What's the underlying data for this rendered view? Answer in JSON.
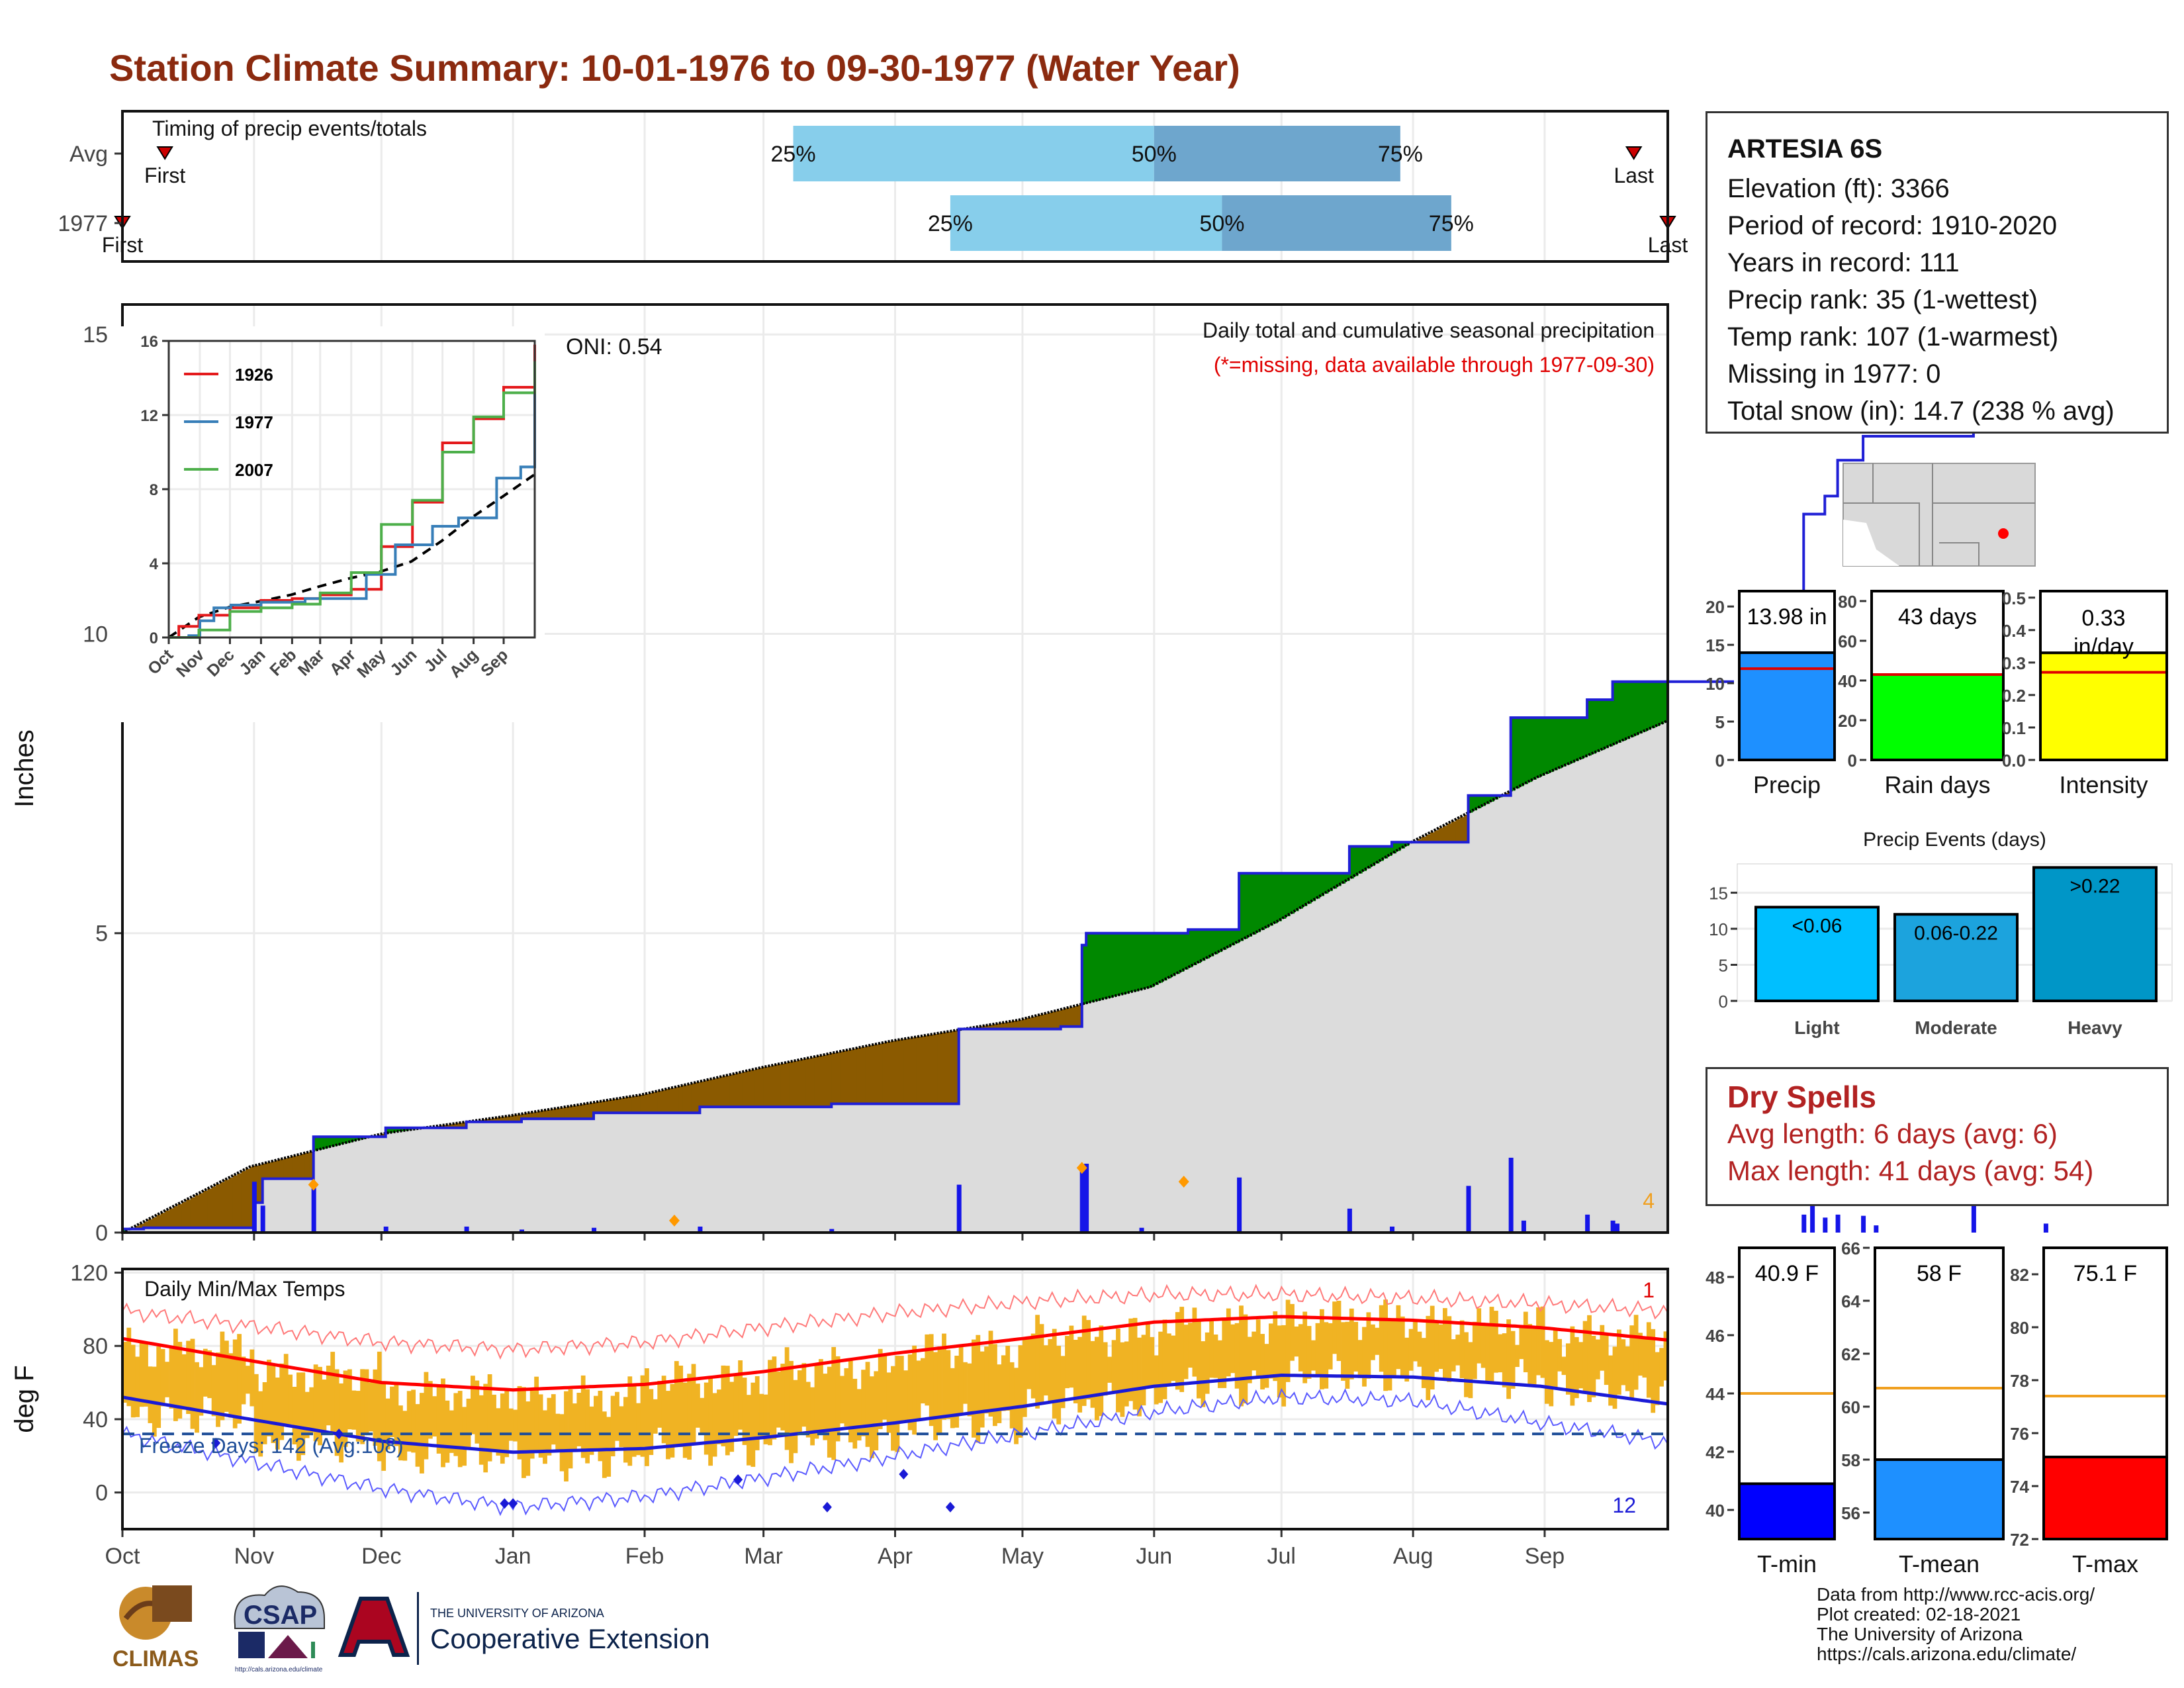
{
  "title": "Station Climate Summary: 10-01-1976 to 09-30-1977 (Water Year)",
  "station": {
    "name": "ARTESIA 6S",
    "lines": [
      "Elevation (ft): 3366",
      "Period of record: 1910-2020",
      "Years in record: 111",
      "Precip rank: 35 (1-wettest)",
      "Temp rank: 107 (1-warmest)",
      "Missing in 1977: 0",
      "Total snow (in): 14.7 (238 % avg)"
    ]
  },
  "dry_spells": {
    "title": "Dry Spells",
    "avg": "Avg length: 6 days (avg: 6)",
    "max": "Max length: 41 days (avg: 54)"
  },
  "credits": [
    "Data from http://www.rcc-acis.org/",
    "Plot created: 02-18-2021",
    "The University of Arizona",
    "https://cals.arizona.edu/climate/"
  ],
  "logos": {
    "climas": "CLIMAS",
    "csap": "CSAP",
    "csap_url": "http://cals.arizona.edu/climate",
    "ua_small": "THE UNIVERSITY OF ARIZONA",
    "ua_big": "Cooperative Extension"
  },
  "colors": {
    "title": "#8b2a0f",
    "precip_green": "#008800",
    "precip_brown": "#8b5a00",
    "precip_line": "#1f1fd6",
    "cum_gray": "#dcdcdc",
    "bar_orange": "#f0b323",
    "tmax_red": "#ff0000",
    "tmin_blue": "#1a1ad6",
    "freeze_line": "#1f4e99",
    "light_blue": "#87ceeb",
    "mid_blue": "#6ea6cd",
    "dry_red": "#b22222"
  },
  "chart_data": [
    {
      "id": "timing",
      "type": "bar",
      "title": "Timing of precip events/totals",
      "rows": [
        {
          "label": "Avg",
          "q25": "Mar 8",
          "q50": "Jun 1",
          "q75": "Jul 29",
          "first": "Oct 11",
          "last": "Sep 22"
        },
        {
          "label": "1977",
          "q25": "Apr 14",
          "q50": "Jun 17",
          "q75": "Aug 10",
          "first": "Oct 1",
          "last": "Sep 30"
        }
      ],
      "first_label": "First",
      "last_label": "Last",
      "pct_labels": [
        "25%",
        "50%",
        "75%"
      ]
    },
    {
      "id": "precip",
      "type": "area",
      "title": "Daily total and cumulative seasonal precipitation",
      "subtitle": "(*=missing, data available through 1977-09-30)",
      "annotation": "ONI: 0.54",
      "ylabel": "Inches",
      "ylim": [
        0,
        15.5
      ],
      "yticks": [
        0,
        5,
        10,
        15
      ],
      "corner_label": "4",
      "x_month_labels": [
        "Oct",
        "Nov",
        "Dec",
        "Jan",
        "Feb",
        "Mar",
        "Apr",
        "May",
        "Jun",
        "Jul",
        "Aug",
        "Sep"
      ],
      "x_unit": "day of water year (0 = Oct 1)",
      "cum_1977_steps": [
        [
          0,
          0.06
        ],
        [
          5,
          0.08
        ],
        [
          30,
          0.08
        ],
        [
          31,
          0.5
        ],
        [
          33,
          0.9
        ],
        [
          44,
          0.9
        ],
        [
          45,
          1.6
        ],
        [
          60,
          1.6
        ],
        [
          62,
          1.75
        ],
        [
          80,
          1.75
        ],
        [
          81,
          1.85
        ],
        [
          93,
          1.85
        ],
        [
          94,
          1.9
        ],
        [
          110,
          1.9
        ],
        [
          111,
          2.0
        ],
        [
          135,
          2.0
        ],
        [
          136,
          2.1
        ],
        [
          166,
          2.1
        ],
        [
          167,
          2.15
        ],
        [
          196,
          2.15
        ],
        [
          197,
          3.4
        ],
        [
          220,
          3.4
        ],
        [
          221,
          3.44
        ],
        [
          225,
          3.44
        ],
        [
          226,
          4.8
        ],
        [
          227,
          5.0
        ],
        [
          250,
          5.0
        ],
        [
          251,
          5.06
        ],
        [
          262,
          5.06
        ],
        [
          263,
          6.0
        ],
        [
          288,
          6.0
        ],
        [
          289,
          6.45
        ],
        [
          298,
          6.45
        ],
        [
          299,
          6.52
        ],
        [
          316,
          6.52
        ],
        [
          317,
          7.3
        ],
        [
          326,
          7.3
        ],
        [
          327,
          8.6
        ],
        [
          344,
          8.6
        ],
        [
          345,
          8.9
        ],
        [
          350,
          8.9
        ],
        [
          351,
          9.2
        ],
        [
          395,
          9.2
        ],
        [
          396,
          12.0
        ],
        [
          401,
          12.3
        ],
        [
          403,
          12.3
        ],
        [
          404,
          12.9
        ],
        [
          409,
          12.9
        ],
        [
          410,
          13.3
        ],
        [
          435,
          13.3
        ],
        [
          436,
          13.8
        ],
        [
          452,
          13.8
        ],
        [
          453,
          13.98
        ],
        [
          464,
          13.98
        ]
      ],
      "cum_avg": [
        [
          0,
          0.0
        ],
        [
          30,
          1.1
        ],
        [
          61,
          1.65
        ],
        [
          91,
          1.95
        ],
        [
          122,
          2.3
        ],
        [
          150,
          2.75
        ],
        [
          181,
          3.2
        ],
        [
          211,
          3.55
        ],
        [
          242,
          4.1
        ],
        [
          272,
          5.2
        ],
        [
          303,
          6.5
        ],
        [
          333,
          7.6
        ],
        [
          364,
          8.55
        ],
        [
          395,
          9.5
        ],
        [
          426,
          10.5
        ],
        [
          457,
          11.6
        ],
        [
          464,
          11.9
        ]
      ],
      "daily_1977": [
        [
          31,
          0.85
        ],
        [
          33,
          0.45
        ],
        [
          45,
          0.78
        ],
        [
          62,
          0.1
        ],
        [
          81,
          0.1
        ],
        [
          94,
          0.05
        ],
        [
          111,
          0.08
        ],
        [
          136,
          0.1
        ],
        [
          167,
          0.06
        ],
        [
          197,
          0.8
        ],
        [
          226,
          1.05
        ],
        [
          227,
          1.15
        ],
        [
          240,
          0.08
        ],
        [
          263,
          0.92
        ],
        [
          289,
          0.4
        ],
        [
          299,
          0.1
        ],
        [
          317,
          0.78
        ],
        [
          327,
          1.25
        ],
        [
          330,
          0.2
        ],
        [
          345,
          0.3
        ],
        [
          351,
          0.2
        ],
        [
          352,
          0.15
        ],
        [
          396,
          0.3
        ],
        [
          398,
          2.35
        ],
        [
          401,
          0.25
        ],
        [
          404,
          0.3
        ],
        [
          410,
          0.28
        ],
        [
          413,
          0.12
        ],
        [
          436,
          0.5
        ],
        [
          453,
          0.15
        ]
      ],
      "orange_markers": [
        [
          45,
          0.8
        ],
        [
          130,
          0.2
        ],
        [
          226,
          1.08
        ],
        [
          250,
          0.85
        ]
      ]
    },
    {
      "id": "inset",
      "type": "line",
      "ylim": [
        0,
        16
      ],
      "yticks": [
        0,
        4,
        8,
        12,
        16
      ],
      "x_labels": [
        "Oct",
        "Nov",
        "Dec",
        "Jan",
        "Feb",
        "Mar",
        "Apr",
        "May",
        "Jun",
        "Jul",
        "Aug",
        "Sep"
      ],
      "series": [
        {
          "name": "1926",
          "color": "#e41a1c",
          "values": [
            [
              0,
              0.0
            ],
            [
              10,
              0.6
            ],
            [
              30,
              1.2
            ],
            [
              61,
              1.6
            ],
            [
              92,
              2.0
            ],
            [
              123,
              2.1
            ],
            [
              151,
              2.3
            ],
            [
              182,
              2.6
            ],
            [
              212,
              4.9
            ],
            [
              243,
              7.3
            ],
            [
              273,
              10.5
            ],
            [
              304,
              11.8
            ],
            [
              334,
              13.5
            ],
            [
              365,
              15.8
            ]
          ]
        },
        {
          "name": "1977",
          "color": "#377eb8",
          "values": [
            [
              0,
              0.0
            ],
            [
              20,
              0.1
            ],
            [
              31,
              0.9
            ],
            [
              45,
              1.6
            ],
            [
              62,
              1.75
            ],
            [
              92,
              1.9
            ],
            [
              136,
              2.1
            ],
            [
              197,
              3.4
            ],
            [
              226,
              5.0
            ],
            [
              263,
              6.0
            ],
            [
              289,
              6.45
            ],
            [
              327,
              8.6
            ],
            [
              351,
              9.2
            ],
            [
              396,
              12.0
            ],
            [
              410,
              13.3
            ],
            [
              436,
              13.8
            ],
            [
              464,
              13.98
            ]
          ]
        },
        {
          "name": "2007",
          "color": "#4daf4a",
          "values": [
            [
              0,
              0.0
            ],
            [
              30,
              0.4
            ],
            [
              61,
              1.4
            ],
            [
              92,
              1.6
            ],
            [
              123,
              1.8
            ],
            [
              151,
              2.4
            ],
            [
              182,
              3.5
            ],
            [
              212,
              6.1
            ],
            [
              243,
              7.4
            ],
            [
              273,
              10.0
            ],
            [
              304,
              11.9
            ],
            [
              334,
              13.2
            ],
            [
              365,
              14.9
            ]
          ]
        }
      ],
      "avg_dashed": [
        [
          0,
          0.0
        ],
        [
          30,
          1.1
        ],
        [
          61,
          1.65
        ],
        [
          91,
          1.95
        ],
        [
          122,
          2.3
        ],
        [
          150,
          2.75
        ],
        [
          181,
          3.2
        ],
        [
          211,
          3.55
        ],
        [
          242,
          4.1
        ],
        [
          272,
          5.2
        ],
        [
          303,
          6.5
        ],
        [
          333,
          7.6
        ],
        [
          365,
          8.8
        ]
      ]
    },
    {
      "id": "temps",
      "type": "bar",
      "title": "Daily Min/Max Temps",
      "ylabel": "deg F",
      "ylim": [
        -20,
        122
      ],
      "yticks": [
        0,
        40,
        80,
        120
      ],
      "freeze_label": "Freeze Days: 142 (Avg:108)",
      "freeze_line": 32,
      "corner_top": "1",
      "corner_bottom": "12",
      "tmax_normal": [
        [
          0,
          84
        ],
        [
          30,
          72
        ],
        [
          61,
          60
        ],
        [
          92,
          56
        ],
        [
          123,
          59
        ],
        [
          151,
          66
        ],
        [
          182,
          76
        ],
        [
          212,
          84
        ],
        [
          243,
          93
        ],
        [
          273,
          96
        ],
        [
          304,
          94
        ],
        [
          334,
          90
        ],
        [
          365,
          83
        ]
      ],
      "tmin_normal": [
        [
          0,
          52
        ],
        [
          30,
          40
        ],
        [
          61,
          28
        ],
        [
          92,
          22
        ],
        [
          123,
          24
        ],
        [
          151,
          30
        ],
        [
          182,
          38
        ],
        [
          212,
          47
        ],
        [
          243,
          58
        ],
        [
          273,
          64
        ],
        [
          304,
          63
        ],
        [
          334,
          58
        ],
        [
          365,
          48
        ]
      ],
      "tmax_record": [
        [
          0,
          99
        ],
        [
          30,
          91
        ],
        [
          61,
          82
        ],
        [
          92,
          78
        ],
        [
          123,
          82
        ],
        [
          151,
          90
        ],
        [
          182,
          98
        ],
        [
          212,
          104
        ],
        [
          243,
          108
        ],
        [
          273,
          108
        ],
        [
          304,
          106
        ],
        [
          334,
          103
        ],
        [
          365,
          99
        ]
      ],
      "tmin_record": [
        [
          0,
          32
        ],
        [
          30,
          17
        ],
        [
          61,
          2
        ],
        [
          92,
          -8
        ],
        [
          123,
          -2
        ],
        [
          151,
          8
        ],
        [
          182,
          20
        ],
        [
          212,
          32
        ],
        [
          243,
          44
        ],
        [
          273,
          52
        ],
        [
          304,
          50
        ],
        [
          334,
          38
        ],
        [
          365,
          27
        ]
      ],
      "monthly_max": [
        78,
        65,
        55,
        52,
        62,
        68,
        78,
        86,
        92,
        95,
        92,
        86
      ],
      "monthly_min": [
        42,
        28,
        20,
        18,
        24,
        28,
        38,
        48,
        58,
        64,
        62,
        55
      ],
      "x_month_labels": [
        "Oct",
        "Nov",
        "Dec",
        "Jan",
        "Feb",
        "Mar",
        "Apr",
        "May",
        "Jun",
        "Jul",
        "Aug",
        "Sep"
      ]
    },
    {
      "id": "precip_totals",
      "type": "bar",
      "panels": [
        {
          "category": "Precip",
          "value": 13.98,
          "label": "13.98 in",
          "avg": 11.9,
          "ylim": [
            0,
            22
          ],
          "yticks": [
            0,
            5,
            10,
            15,
            20
          ],
          "color": "#1e90ff"
        },
        {
          "category": "Rain days",
          "value": 43,
          "label": "43 days",
          "avg": 43,
          "ylim": [
            0,
            85
          ],
          "yticks": [
            0,
            20,
            40,
            60,
            80
          ],
          "color": "#00ff00"
        },
        {
          "category": "Intensity",
          "value": 0.33,
          "label": "0.33 in/day",
          "avg": 0.27,
          "ylim": [
            0,
            0.52
          ],
          "yticks": [
            0.0,
            0.1,
            0.2,
            0.3,
            0.4,
            0.5
          ],
          "color": "#ffff00"
        }
      ]
    },
    {
      "id": "precip_events",
      "type": "bar",
      "title": "Precip Events (days)",
      "categories": [
        "Light",
        "Moderate",
        "Heavy"
      ],
      "values": [
        13,
        12,
        18.5
      ],
      "labels": [
        "<0.06",
        "0.06-0.22",
        ">0.22"
      ],
      "ylim": [
        0,
        19
      ],
      "yticks": [
        0,
        5,
        10,
        15
      ],
      "colors": [
        "#00bfff",
        "#1ca3dd",
        "#0096c7"
      ]
    },
    {
      "id": "temp_totals",
      "type": "bar",
      "panels": [
        {
          "category": "T-min",
          "value": 40.9,
          "label": "40.9 F",
          "avg": 44.0,
          "ylim": [
            39,
            49
          ],
          "yticks": [
            40,
            42,
            44,
            46,
            48
          ],
          "color": "#0000ff"
        },
        {
          "category": "T-mean",
          "value": 58,
          "label": "58 F",
          "avg": 60.7,
          "ylim": [
            55,
            66
          ],
          "yticks": [
            56,
            58,
            60,
            62,
            64,
            66
          ],
          "color": "#1e90ff"
        },
        {
          "category": "T-max",
          "value": 75.1,
          "label": "75.1 F",
          "avg": 77.4,
          "ylim": [
            72,
            83
          ],
          "yticks": [
            72,
            74,
            76,
            78,
            80,
            82
          ],
          "color": "#ff0000"
        }
      ]
    }
  ]
}
